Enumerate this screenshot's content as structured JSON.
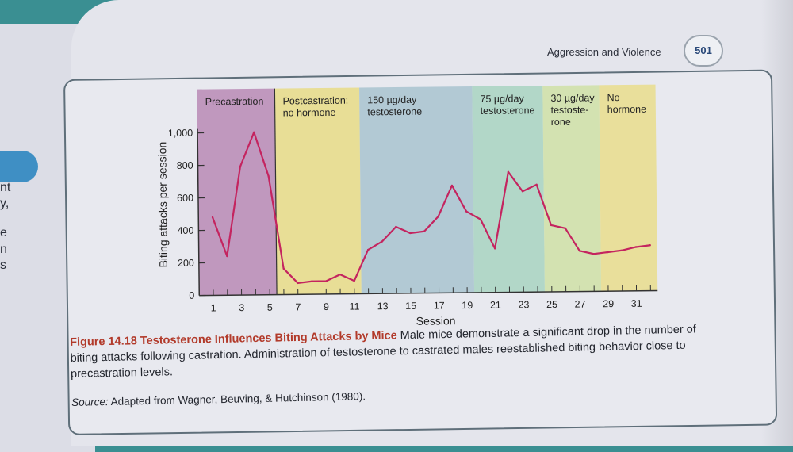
{
  "page": {
    "running_head": "Aggression and Violence",
    "page_number": "501"
  },
  "left_fragments": [
    "nt",
    "y,",
    "e",
    "n",
    "s"
  ],
  "colors": {
    "precastration": "#b98ab5",
    "postcastration": "#e7dc86",
    "t150": "#a8c3cf",
    "t75": "#a8d4c1",
    "t30": "#cfe0a6",
    "nohormone": "#e9dd8c",
    "line": "#c4245f",
    "axis": "#333333"
  },
  "chart_data": {
    "type": "line",
    "title": "",
    "xlabel": "Session",
    "ylabel": "Biting attacks per session",
    "xlim": [
      0,
      32
    ],
    "ylim": [
      0,
      1000
    ],
    "yticks": [
      0,
      200,
      400,
      600,
      800,
      1000
    ],
    "ytick_labels": [
      "0",
      "200",
      "400",
      "600",
      "800",
      "1,000"
    ],
    "xticks": [
      1,
      3,
      5,
      7,
      9,
      11,
      13,
      15,
      17,
      19,
      21,
      23,
      25,
      27,
      29,
      31
    ],
    "series": [
      {
        "name": "Biting attacks",
        "x": [
          1,
          2,
          3,
          4,
          5,
          6,
          7,
          8,
          9,
          10,
          11,
          12,
          13,
          14,
          15,
          16,
          17,
          18,
          19,
          20,
          21,
          22,
          23,
          24,
          25,
          26,
          27,
          28,
          29,
          30,
          31,
          32
        ],
        "values": [
          480,
          240,
          790,
          1000,
          730,
          160,
          70,
          80,
          80,
          120,
          80,
          270,
          320,
          410,
          370,
          380,
          470,
          660,
          500,
          450,
          270,
          740,
          620,
          660,
          410,
          390,
          250,
          230,
          240,
          250,
          270,
          280
        ]
      }
    ],
    "phases": [
      {
        "label_lines": [
          "Precastration"
        ],
        "start": 0,
        "end": 5.5,
        "color_key": "precastration"
      },
      {
        "label_lines": [
          "Postcastration:",
          "no hormone"
        ],
        "start": 5.5,
        "end": 11.5,
        "color_key": "postcastration"
      },
      {
        "label_lines": [
          "150 µg/day",
          "testosterone"
        ],
        "start": 11.5,
        "end": 19.5,
        "color_key": "t150"
      },
      {
        "label_lines": [
          "75 µg/day",
          "testosterone"
        ],
        "start": 19.5,
        "end": 24.5,
        "color_key": "t75"
      },
      {
        "label_lines": [
          "30 µg/day",
          "testoste-",
          "rone"
        ],
        "start": 24.5,
        "end": 28.5,
        "color_key": "t30"
      },
      {
        "label_lines": [
          "No",
          "hormone"
        ],
        "start": 28.5,
        "end": 32.5,
        "color_key": "nohormone"
      }
    ]
  },
  "caption": {
    "label": "Figure 14.18",
    "title": "Testosterone Influences Biting Attacks by Mice",
    "text": "Male mice demonstrate a significant drop in the number of biting attacks following castration. Administration of testosterone to castrated males reestablished biting behavior close to precastration levels.",
    "source_label": "Source:",
    "source_text": "Adapted from Wagner, Beuving, & Hutchinson (1980)."
  }
}
